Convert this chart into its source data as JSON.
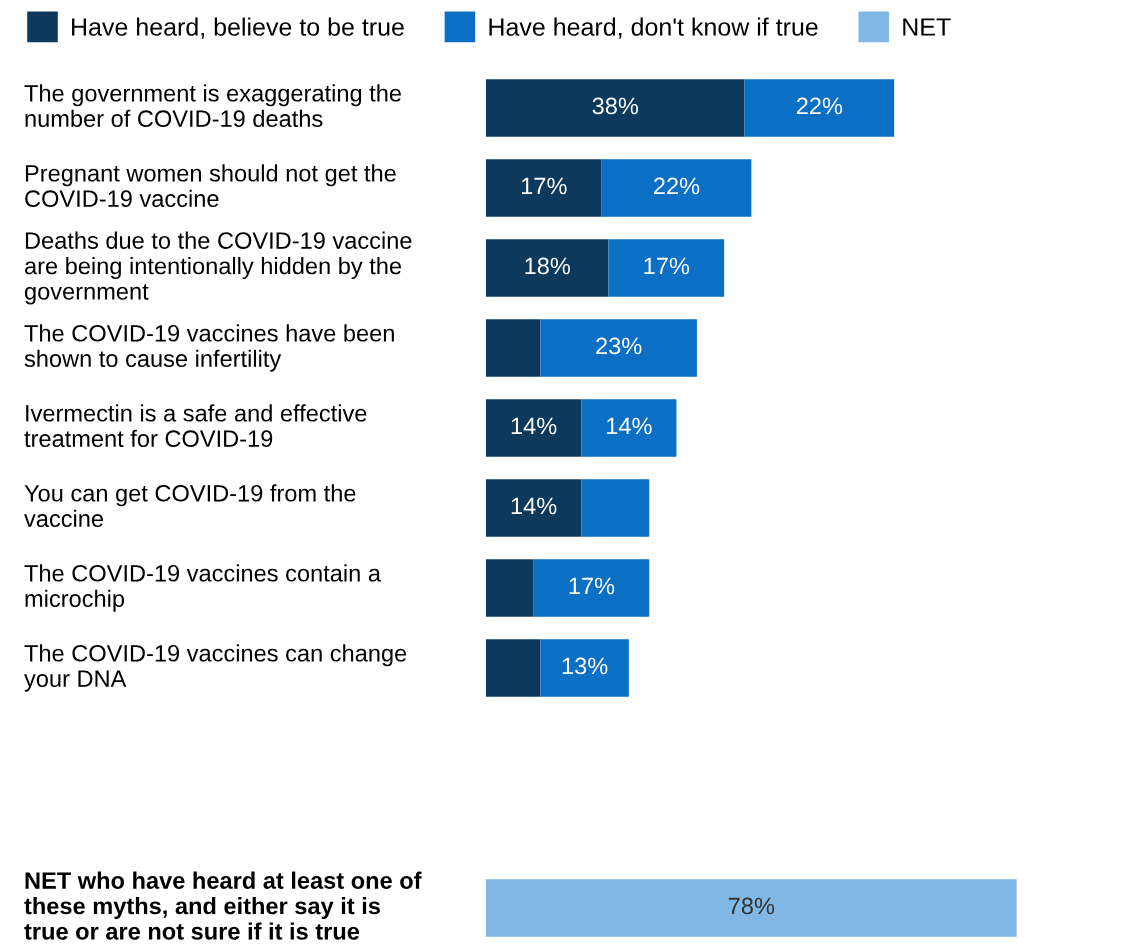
{
  "chart_data": {
    "type": "bar",
    "orientation": "horizontal",
    "stacked": true,
    "legend": "top",
    "grid": false,
    "tick_labels": "y",
    "categories": [
      "The government is exaggerating the\nnumber of COVID-19 deaths",
      "Pregnant women should not get the\nCOVID-19 vaccine",
      "Deaths due to the COVID-19 vaccine\nare being intentionally hidden by the\ngovernment",
      "The COVID-19 vaccines have been\nshown to cause infertility",
      "Ivermectin is a safe and effective\ntreatment for COVID-19",
      "You can get COVID-19 from the\nvaccine",
      "The COVID-19 vaccines contain a\nmicrochip",
      "The COVID-19 vaccines can change\nyour DNA",
      null,
      null,
      "NET who have heard at least one of\nthese myths, and either say it is\ntrue or are not sure if it is true"
    ],
    "series": [
      {
        "name": "Have heard, believe to be true",
        "color": "#0d3a5c",
        "values": [
          38,
          17,
          18,
          8,
          14,
          14,
          7,
          8,
          null,
          null,
          null
        ],
        "value_labels": [
          "38%",
          "17%",
          "18%",
          null,
          "14%",
          "14%",
          null,
          null,
          null,
          null,
          null
        ]
      },
      {
        "name": "Have heard, don't know if true",
        "color": "#0b6fc4",
        "values": [
          22,
          22,
          17,
          23,
          14,
          10,
          17,
          13,
          null,
          null,
          null
        ],
        "value_labels": [
          "22%",
          "22%",
          "17%",
          "23%",
          "14%",
          null,
          "17%",
          "13%",
          null,
          null,
          null
        ]
      },
      {
        "name": "NET",
        "color": "#80b7e4",
        "values": [
          null,
          null,
          null,
          null,
          null,
          null,
          null,
          null,
          null,
          null,
          78
        ],
        "value_labels": [
          null,
          null,
          null,
          null,
          null,
          null,
          null,
          null,
          null,
          null,
          "78%"
        ]
      }
    ]
  }
}
